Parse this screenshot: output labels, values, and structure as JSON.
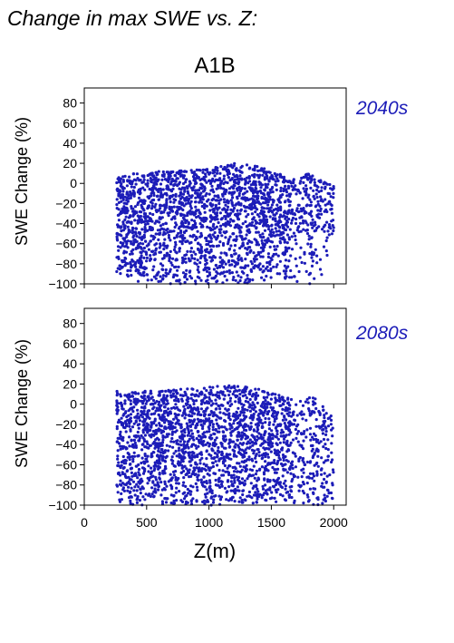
{
  "figure": {
    "title": "Change in max SWE vs. Z:",
    "scenario": "A1B",
    "xlabel": "Z(m)",
    "accent_color": "#1c1cb8"
  },
  "chart_data": [
    {
      "type": "scatter",
      "period_label": "2040s",
      "ylabel": "SWE Change (%)",
      "xlim": [
        0,
        2100
      ],
      "ylim": [
        -100,
        95
      ],
      "x_ticks": [
        0,
        500,
        1000,
        1500,
        2000
      ],
      "y_ticks": [
        80,
        60,
        40,
        20,
        0,
        -20,
        -40,
        -60,
        -80,
        -100
      ],
      "y_tick_labels": [
        "80",
        "60",
        "40",
        "20",
        "0",
        "−20",
        "−40",
        "−60",
        "−80",
        "−100"
      ],
      "color": "#1c1cb8",
      "grid": false,
      "envelope": {
        "z": [
          260,
          400,
          600,
          800,
          1000,
          1200,
          1400,
          1500,
          1600,
          1700,
          1800,
          1900,
          2000
        ],
        "max": [
          7,
          10,
          12,
          13,
          15,
          20,
          18,
          12,
          8,
          5,
          10,
          5,
          0
        ],
        "min": [
          -92,
          -98,
          -100,
          -100,
          -100,
          -100,
          -99,
          -97,
          -95,
          -98,
          -100,
          -98,
          -60
        ]
      }
    },
    {
      "type": "scatter",
      "period_label": "2080s",
      "ylabel": "SWE Change (%)",
      "xlim": [
        0,
        2100
      ],
      "ylim": [
        -100,
        95
      ],
      "x_ticks": [
        0,
        500,
        1000,
        1500,
        2000
      ],
      "x_tick_labels": [
        "0",
        "500",
        "1000",
        "1500",
        "2000"
      ],
      "y_ticks": [
        80,
        60,
        40,
        20,
        0,
        -20,
        -40,
        -60,
        -80,
        -100
      ],
      "y_tick_labels": [
        "80",
        "60",
        "40",
        "20",
        "0",
        "−20",
        "−40",
        "−60",
        "−80",
        "−100"
      ],
      "color": "#1c1cb8",
      "grid": false,
      "envelope": {
        "z": [
          260,
          400,
          600,
          800,
          1000,
          1200,
          1400,
          1500,
          1600,
          1700,
          1800,
          1900,
          2000
        ],
        "max": [
          13,
          12,
          14,
          15,
          17,
          20,
          15,
          12,
          8,
          5,
          8,
          3,
          -15
        ],
        "min": [
          -100,
          -100,
          -100,
          -100,
          -100,
          -100,
          -100,
          -100,
          -100,
          -100,
          -100,
          -100,
          -100
        ]
      }
    }
  ]
}
